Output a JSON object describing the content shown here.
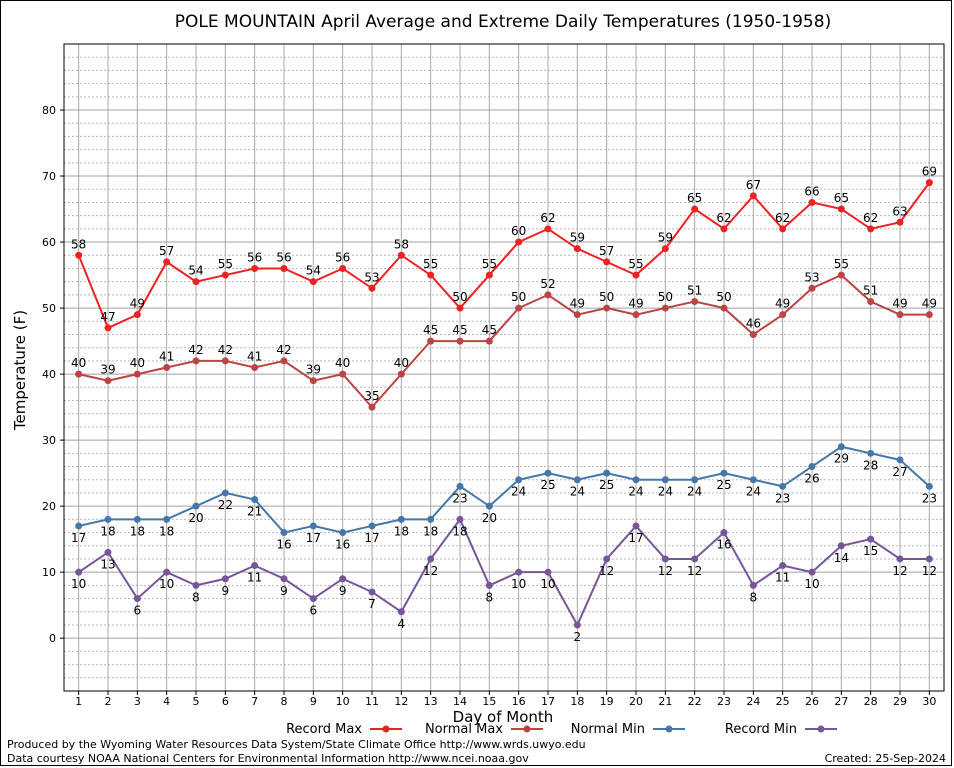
{
  "chart_data": {
    "type": "line",
    "title": "POLE MOUNTAIN April Average and Extreme Daily Temperatures (1950-1958)",
    "xlabel": "Day of Month",
    "ylabel": "Temperature (F)",
    "x": [
      1,
      2,
      3,
      4,
      5,
      6,
      7,
      8,
      9,
      10,
      11,
      12,
      13,
      14,
      15,
      16,
      17,
      18,
      19,
      20,
      21,
      22,
      23,
      24,
      25,
      26,
      27,
      28,
      29,
      30
    ],
    "xlim": [
      0.5,
      30.5
    ],
    "ylim": [
      -8,
      90
    ],
    "yticks": [
      0,
      10,
      20,
      30,
      40,
      50,
      60,
      70,
      80
    ],
    "grid": true,
    "legend_position": "bottom",
    "series": [
      {
        "name": "Record Max",
        "color": "#ee2222",
        "values": [
          58,
          47,
          49,
          57,
          54,
          55,
          56,
          56,
          54,
          56,
          53,
          58,
          55,
          50,
          55,
          60,
          62,
          59,
          57,
          55,
          59,
          65,
          62,
          67,
          62,
          66,
          65,
          62,
          63,
          69
        ]
      },
      {
        "name": "Normal Max",
        "color": "#bb4444",
        "values": [
          40,
          39,
          40,
          41,
          42,
          42,
          41,
          42,
          39,
          40,
          35,
          40,
          45,
          45,
          45,
          50,
          52,
          49,
          50,
          49,
          50,
          51,
          50,
          46,
          49,
          53,
          55,
          51,
          49,
          49
        ]
      },
      {
        "name": "Normal Min",
        "color": "#4477aa",
        "values": [
          17,
          18,
          18,
          18,
          20,
          22,
          21,
          16,
          17,
          16,
          17,
          18,
          18,
          23,
          20,
          24,
          25,
          24,
          25,
          24,
          24,
          24,
          25,
          24,
          23,
          26,
          29,
          28,
          27,
          23
        ]
      },
      {
        "name": "Record Min",
        "color": "#775599",
        "values": [
          10,
          13,
          6,
          10,
          8,
          9,
          11,
          9,
          6,
          9,
          7,
          4,
          12,
          18,
          8,
          10,
          10,
          2,
          12,
          17,
          12,
          12,
          16,
          8,
          11,
          10,
          14,
          15,
          12,
          12
        ]
      }
    ]
  },
  "footer": {
    "produced_by": "Produced by the Wyoming Water Resources Data System/State Climate Office http://www.wrds.uwyo.edu",
    "data_courtesy": "Data courtesy NOAA National Centers for Environmental Information http://www.ncei.noaa.gov",
    "created": "Created:  25-Sep-2024"
  }
}
